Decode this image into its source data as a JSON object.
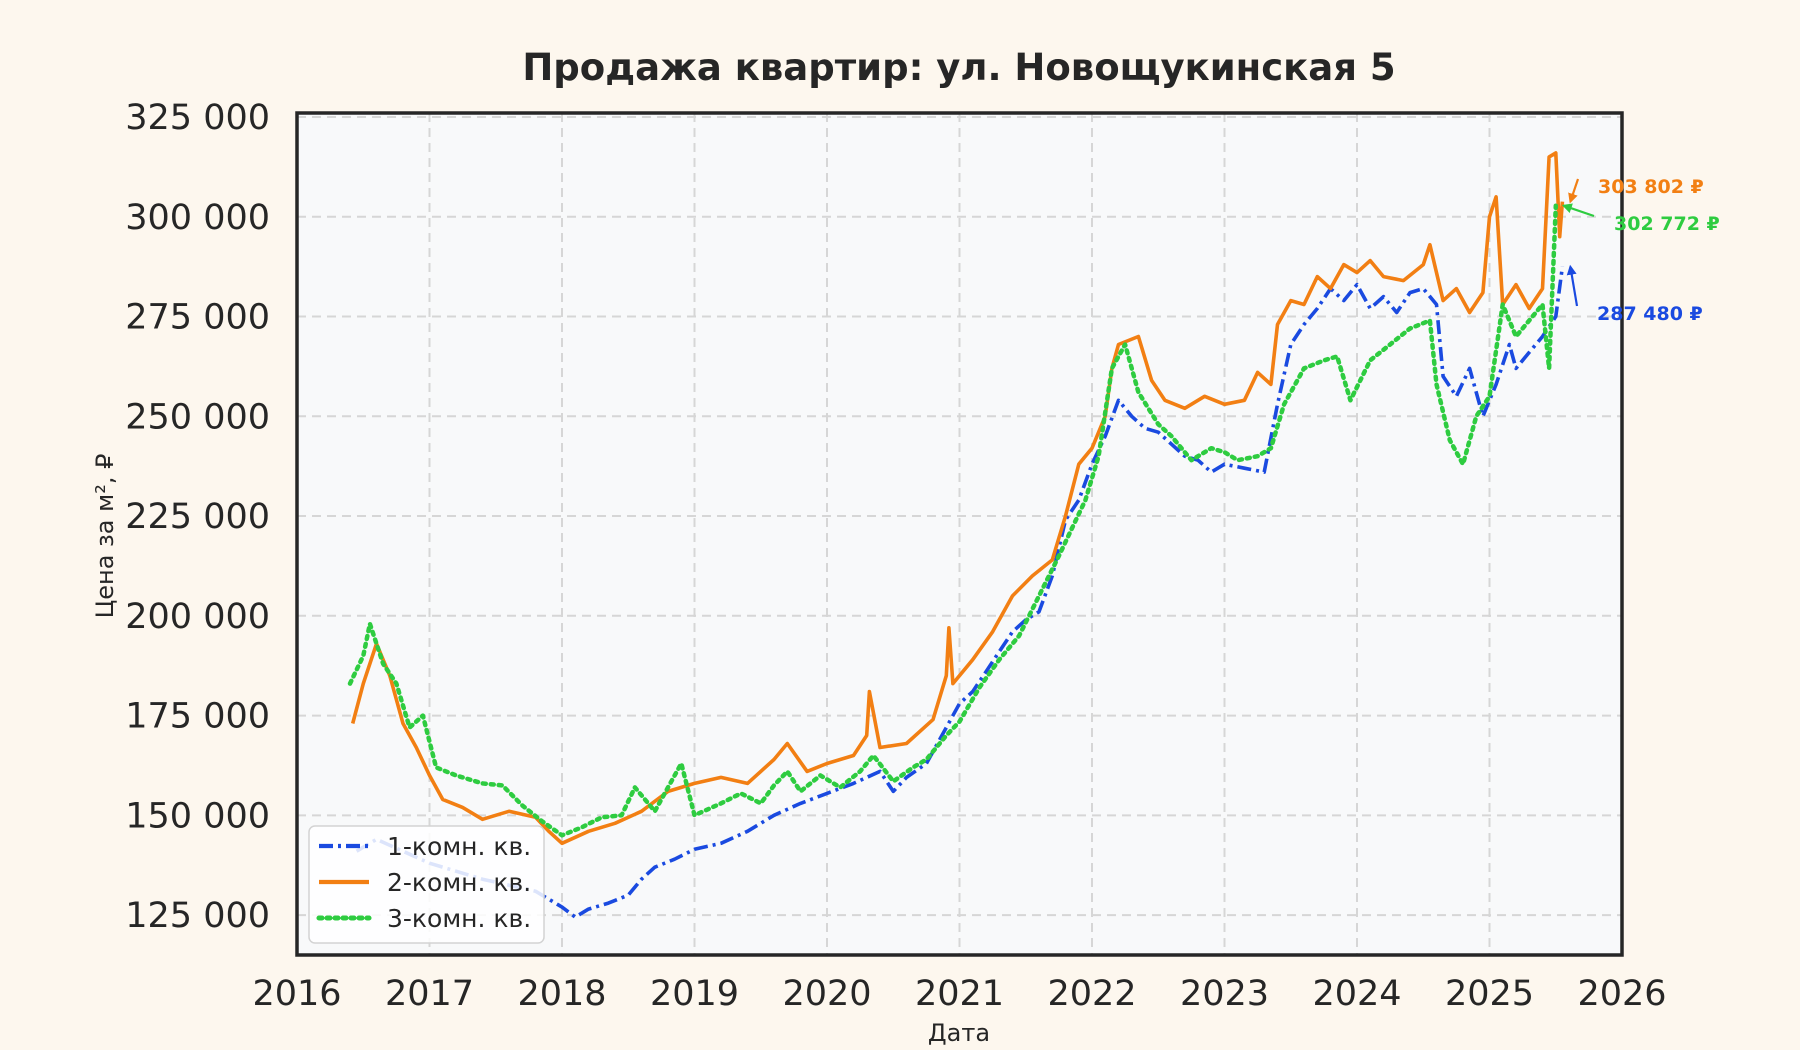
{
  "chart_data": {
    "type": "line",
    "title": "Продажа квартир: ул. Новощукинская 5",
    "xlabel": "Дата",
    "ylabel": "Цена за м², ₽",
    "xlim": [
      2016,
      2026
    ],
    "ylim": [
      115000,
      326000
    ],
    "x_ticks": [
      "2016",
      "2017",
      "2018",
      "2019",
      "2020",
      "2021",
      "2022",
      "2023",
      "2024",
      "2025",
      "2026"
    ],
    "y_ticks": [
      {
        "value": 125000,
        "label": "125 000"
      },
      {
        "value": 150000,
        "label": "150 000"
      },
      {
        "value": 175000,
        "label": "175 000"
      },
      {
        "value": 200000,
        "label": "200 000"
      },
      {
        "value": 225000,
        "label": "225 000"
      },
      {
        "value": 250000,
        "label": "250 000"
      },
      {
        "value": 275000,
        "label": "275 000"
      },
      {
        "value": 300000,
        "label": "300 000"
      },
      {
        "value": 325000,
        "label": "325 000"
      }
    ],
    "grid": true,
    "legend_position": "lower-left",
    "series": [
      {
        "name": "1-комн. кв.",
        "color": "#1a4ae0",
        "style": "dashdot",
        "points": [
          [
            2016.45,
            141000
          ],
          [
            2016.6,
            144000
          ],
          [
            2016.8,
            141000
          ],
          [
            2017.0,
            138000
          ],
          [
            2017.2,
            136000
          ],
          [
            2017.4,
            134000
          ],
          [
            2017.6,
            132500
          ],
          [
            2017.8,
            131000
          ],
          [
            2018.0,
            127000
          ],
          [
            2018.1,
            124500
          ],
          [
            2018.2,
            126500
          ],
          [
            2018.35,
            128000
          ],
          [
            2018.5,
            130000
          ],
          [
            2018.6,
            134000
          ],
          [
            2018.7,
            137000
          ],
          [
            2018.85,
            139000
          ],
          [
            2019.0,
            141500
          ],
          [
            2019.2,
            143000
          ],
          [
            2019.4,
            146000
          ],
          [
            2019.6,
            150000
          ],
          [
            2019.8,
            153000
          ],
          [
            2020.0,
            155500
          ],
          [
            2020.2,
            158000
          ],
          [
            2020.4,
            161000
          ],
          [
            2020.5,
            156000
          ],
          [
            2020.6,
            159500
          ],
          [
            2020.75,
            163000
          ],
          [
            2020.9,
            172000
          ],
          [
            2021.0,
            178000
          ],
          [
            2021.1,
            181000
          ],
          [
            2021.2,
            186000
          ],
          [
            2021.3,
            191000
          ],
          [
            2021.4,
            196000
          ],
          [
            2021.5,
            199000
          ],
          [
            2021.6,
            201000
          ],
          [
            2021.7,
            210000
          ],
          [
            2021.8,
            224000
          ],
          [
            2021.9,
            229000
          ],
          [
            2022.0,
            238000
          ],
          [
            2022.1,
            245000
          ],
          [
            2022.2,
            254000
          ],
          [
            2022.3,
            250000
          ],
          [
            2022.4,
            247000
          ],
          [
            2022.5,
            246000
          ],
          [
            2022.6,
            243000
          ],
          [
            2022.7,
            240000
          ],
          [
            2022.8,
            239000
          ],
          [
            2022.9,
            236000
          ],
          [
            2023.0,
            238000
          ],
          [
            2023.15,
            237000
          ],
          [
            2023.3,
            236000
          ],
          [
            2023.4,
            253000
          ],
          [
            2023.5,
            268000
          ],
          [
            2023.6,
            273000
          ],
          [
            2023.7,
            277000
          ],
          [
            2023.8,
            282000
          ],
          [
            2023.9,
            279000
          ],
          [
            2024.0,
            283000
          ],
          [
            2024.1,
            277000
          ],
          [
            2024.2,
            280000
          ],
          [
            2024.3,
            276000
          ],
          [
            2024.4,
            281000
          ],
          [
            2024.5,
            282000
          ],
          [
            2024.6,
            278000
          ],
          [
            2024.65,
            260000
          ],
          [
            2024.75,
            255000
          ],
          [
            2024.85,
            262000
          ],
          [
            2024.95,
            250000
          ],
          [
            2025.05,
            258000
          ],
          [
            2025.15,
            268000
          ],
          [
            2025.2,
            262000
          ],
          [
            2025.3,
            266000
          ],
          [
            2025.4,
            270000
          ],
          [
            2025.5,
            275000
          ],
          [
            2025.55,
            287480
          ]
        ]
      },
      {
        "name": "2-комн. кв.",
        "color": "#f27f13",
        "style": "solid",
        "points": [
          [
            2016.42,
            173000
          ],
          [
            2016.5,
            183000
          ],
          [
            2016.6,
            193000
          ],
          [
            2016.7,
            185000
          ],
          [
            2016.8,
            173000
          ],
          [
            2016.9,
            167000
          ],
          [
            2017.0,
            160000
          ],
          [
            2017.1,
            154000
          ],
          [
            2017.25,
            152000
          ],
          [
            2017.4,
            149000
          ],
          [
            2017.6,
            151000
          ],
          [
            2017.8,
            149500
          ],
          [
            2017.9,
            146000
          ],
          [
            2018.0,
            143000
          ],
          [
            2018.2,
            146000
          ],
          [
            2018.4,
            148000
          ],
          [
            2018.6,
            151000
          ],
          [
            2018.8,
            156000
          ],
          [
            2019.0,
            158000
          ],
          [
            2019.2,
            159500
          ],
          [
            2019.4,
            158000
          ],
          [
            2019.6,
            164000
          ],
          [
            2019.7,
            168000
          ],
          [
            2019.85,
            161000
          ],
          [
            2020.0,
            163000
          ],
          [
            2020.2,
            165000
          ],
          [
            2020.3,
            170000
          ],
          [
            2020.32,
            181000
          ],
          [
            2020.4,
            167000
          ],
          [
            2020.6,
            168000
          ],
          [
            2020.8,
            174000
          ],
          [
            2020.9,
            185000
          ],
          [
            2020.92,
            197000
          ],
          [
            2020.95,
            183000
          ],
          [
            2021.1,
            189000
          ],
          [
            2021.25,
            196000
          ],
          [
            2021.4,
            205000
          ],
          [
            2021.55,
            210000
          ],
          [
            2021.7,
            214000
          ],
          [
            2021.8,
            225000
          ],
          [
            2021.9,
            238000
          ],
          [
            2022.0,
            242000
          ],
          [
            2022.1,
            250000
          ],
          [
            2022.15,
            262000
          ],
          [
            2022.2,
            268000
          ],
          [
            2022.35,
            270000
          ],
          [
            2022.45,
            259000
          ],
          [
            2022.55,
            254000
          ],
          [
            2022.7,
            252000
          ],
          [
            2022.85,
            255000
          ],
          [
            2023.0,
            253000
          ],
          [
            2023.15,
            254000
          ],
          [
            2023.25,
            261000
          ],
          [
            2023.35,
            258000
          ],
          [
            2023.4,
            273000
          ],
          [
            2023.5,
            279000
          ],
          [
            2023.6,
            278000
          ],
          [
            2023.7,
            285000
          ],
          [
            2023.8,
            282000
          ],
          [
            2023.9,
            288000
          ],
          [
            2024.0,
            286000
          ],
          [
            2024.1,
            289000
          ],
          [
            2024.2,
            285000
          ],
          [
            2024.35,
            284000
          ],
          [
            2024.5,
            288000
          ],
          [
            2024.55,
            293000
          ],
          [
            2024.65,
            279000
          ],
          [
            2024.75,
            282000
          ],
          [
            2024.85,
            276000
          ],
          [
            2024.95,
            281000
          ],
          [
            2025.0,
            300000
          ],
          [
            2025.05,
            305000
          ],
          [
            2025.1,
            278000
          ],
          [
            2025.2,
            283000
          ],
          [
            2025.3,
            277000
          ],
          [
            2025.4,
            282000
          ],
          [
            2025.45,
            315000
          ],
          [
            2025.5,
            316000
          ],
          [
            2025.53,
            295000
          ],
          [
            2025.55,
            303802
          ]
        ]
      },
      {
        "name": "3-комн. кв.",
        "color": "#2ecc40",
        "style": "dotted",
        "points": [
          [
            2016.4,
            183000
          ],
          [
            2016.5,
            190000
          ],
          [
            2016.55,
            198000
          ],
          [
            2016.65,
            188000
          ],
          [
            2016.75,
            183000
          ],
          [
            2016.85,
            172000
          ],
          [
            2016.95,
            175000
          ],
          [
            2017.05,
            162000
          ],
          [
            2017.2,
            160000
          ],
          [
            2017.4,
            158000
          ],
          [
            2017.55,
            157500
          ],
          [
            2017.7,
            152500
          ],
          [
            2017.85,
            148500
          ],
          [
            2018.0,
            145000
          ],
          [
            2018.15,
            147000
          ],
          [
            2018.3,
            149500
          ],
          [
            2018.45,
            150000
          ],
          [
            2018.55,
            157000
          ],
          [
            2018.7,
            151000
          ],
          [
            2018.8,
            157000
          ],
          [
            2018.9,
            163000
          ],
          [
            2019.0,
            150000
          ],
          [
            2019.2,
            153000
          ],
          [
            2019.35,
            155500
          ],
          [
            2019.5,
            153000
          ],
          [
            2019.6,
            157500
          ],
          [
            2019.7,
            161000
          ],
          [
            2019.8,
            156000
          ],
          [
            2019.95,
            160000
          ],
          [
            2020.1,
            157000
          ],
          [
            2020.25,
            161000
          ],
          [
            2020.35,
            165000
          ],
          [
            2020.5,
            158500
          ],
          [
            2020.65,
            162000
          ],
          [
            2020.75,
            164000
          ],
          [
            2020.9,
            170000
          ],
          [
            2021.0,
            173500
          ],
          [
            2021.15,
            182000
          ],
          [
            2021.3,
            189000
          ],
          [
            2021.45,
            195000
          ],
          [
            2021.6,
            205000
          ],
          [
            2021.75,
            215000
          ],
          [
            2021.85,
            222000
          ],
          [
            2021.95,
            229000
          ],
          [
            2022.05,
            240000
          ],
          [
            2022.15,
            262000
          ],
          [
            2022.25,
            268000
          ],
          [
            2022.35,
            256000
          ],
          [
            2022.5,
            248000
          ],
          [
            2022.6,
            245000
          ],
          [
            2022.75,
            239000
          ],
          [
            2022.9,
            242000
          ],
          [
            2023.0,
            241000
          ],
          [
            2023.1,
            239000
          ],
          [
            2023.25,
            240000
          ],
          [
            2023.35,
            242000
          ],
          [
            2023.45,
            253000
          ],
          [
            2023.6,
            262000
          ],
          [
            2023.75,
            264000
          ],
          [
            2023.85,
            265000
          ],
          [
            2023.95,
            254000
          ],
          [
            2024.1,
            264000
          ],
          [
            2024.25,
            268000
          ],
          [
            2024.4,
            272000
          ],
          [
            2024.55,
            274000
          ],
          [
            2024.6,
            258000
          ],
          [
            2024.7,
            244000
          ],
          [
            2024.8,
            238000
          ],
          [
            2024.9,
            250000
          ],
          [
            2025.0,
            255000
          ],
          [
            2025.1,
            278000
          ],
          [
            2025.2,
            270000
          ],
          [
            2025.3,
            274000
          ],
          [
            2025.4,
            278000
          ],
          [
            2025.45,
            262000
          ],
          [
            2025.5,
            302772
          ]
        ]
      }
    ],
    "annotations": [
      {
        "label": "303 802 ₽",
        "series": "2-комн. кв.",
        "color": "#f27f13"
      },
      {
        "label": "302 772 ₽",
        "series": "3-комн. кв.",
        "color": "#2ecc40"
      },
      {
        "label": "287 480 ₽",
        "series": "1-комн. кв.",
        "color": "#1a4ae0"
      }
    ]
  }
}
